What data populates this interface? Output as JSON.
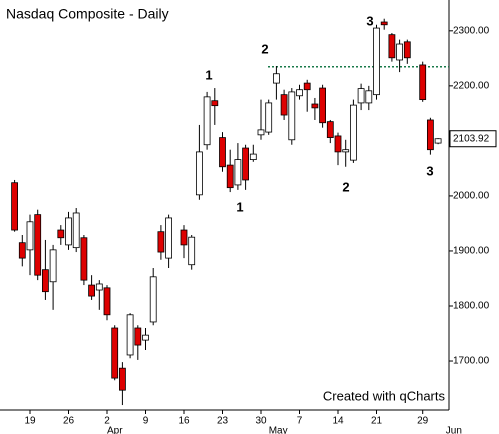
{
  "chart_data": {
    "type": "candlestick",
    "title": "Nasdaq Composite - Daily",
    "credit": "Created with qCharts",
    "categories": [
      null,
      null,
      "19",
      null,
      null,
      null,
      null,
      "26",
      null,
      null,
      null,
      null,
      "2",
      null,
      null,
      null,
      null,
      "9",
      null,
      null,
      null,
      null,
      "16",
      null,
      null,
      null,
      null,
      "23",
      null,
      null,
      null,
      null,
      "30",
      null,
      null,
      null,
      null,
      "7",
      null,
      null,
      null,
      null,
      "14",
      null,
      null,
      null,
      null,
      "21",
      null,
      null,
      null,
      null,
      null,
      "29",
      null,
      null,
      null,
      null
    ],
    "months": [
      null,
      null,
      null,
      null,
      null,
      null,
      null,
      null,
      null,
      null,
      null,
      null,
      "Apr",
      null,
      null,
      null,
      null,
      null,
      null,
      null,
      null,
      null,
      null,
      null,
      null,
      null,
      null,
      null,
      null,
      null,
      null,
      null,
      null,
      "May",
      null,
      null,
      null,
      null,
      null,
      null,
      null,
      null,
      null,
      null,
      null,
      null,
      null,
      null,
      null,
      null,
      null,
      null,
      null,
      null,
      null,
      null,
      "Jun",
      null
    ],
    "open": [
      2024,
      1915,
      1902,
      1966,
      1866,
      1844,
      1938,
      1911,
      1906,
      1924,
      1838,
      1829,
      1833,
      1760,
      1687,
      1711,
      1760,
      1738,
      1771,
      1935,
      1887,
      null,
      1938,
      1875,
      2002,
      2093,
      2173,
      2106,
      2056,
      2020,
      2087,
      2066,
      2111,
      2116,
      2205,
      2184,
      2102,
      2182,
      2205,
      2167,
      2196,
      2135,
      2109,
      2080,
      2065,
      2169,
      2169,
      2184,
      2316,
      2293,
      2247,
      2280,
      null,
      2238,
      2138,
      2096,
      null,
      null
    ],
    "high": [
      2029,
      1929,
      1966,
      1975,
      1920,
      1911,
      1947,
      1971,
      1978,
      1929,
      1856,
      1847,
      1838,
      1765,
      1698,
      1787,
      1765,
      1760,
      1869,
      1947,
      1966,
      null,
      1947,
      1929,
      2129,
      2189,
      2196,
      2116,
      2084,
      2096,
      2093,
      2093,
      2175,
      2175,
      2236,
      2193,
      2196,
      2202,
      2211,
      2178,
      2202,
      2138,
      2115,
      2102,
      2175,
      2204,
      2200,
      2311,
      2322,
      2296,
      2284,
      2284,
      null,
      2244,
      2142,
      2105,
      null,
      null
    ],
    "low": [
      1935,
      1872,
      1856,
      1847,
      1811,
      1793,
      1911,
      1902,
      1898,
      1838,
      1811,
      1793,
      1774,
      1665,
      1620,
      1705,
      1702,
      1720,
      1765,
      1884,
      1869,
      null,
      1887,
      1866,
      1993,
      2084,
      2129,
      2044,
      2007,
      2011,
      2011,
      2062,
      2102,
      2111,
      2175,
      2138,
      2093,
      2175,
      2153,
      2138,
      2124,
      2096,
      2056,
      2053,
      2060,
      2156,
      2156,
      2175,
      2302,
      2244,
      2225,
      2240,
      null,
      2171,
      2075,
      2094,
      null,
      null
    ],
    "close": [
      1938,
      1887,
      1953,
      1856,
      1826,
      1902,
      1924,
      1960,
      1969,
      1847,
      1818,
      1840,
      1784,
      1669,
      1647,
      1784,
      1729,
      1747,
      1853,
      1898,
      1960,
      null,
      1911,
      1925,
      2080,
      2180,
      2164,
      2053,
      2015,
      2066,
      2029,
      2076,
      2120,
      2169,
      2222,
      2147,
      2189,
      2193,
      2193,
      2160,
      2133,
      2106,
      2080,
      2084,
      2165,
      2195,
      2191,
      2305,
      2311,
      2251,
      2276,
      2251,
      null,
      2175,
      2084,
      2103.92,
      null,
      null
    ],
    "up_color": "#ffffff",
    "down_color": "#dd0000",
    "ylim": [
      1611,
      2356
    ],
    "yticks": [
      {
        "value": 1700,
        "label": "1700.00"
      },
      {
        "value": 1800,
        "label": "1800.00"
      },
      {
        "value": 1900,
        "label": "1900.00"
      },
      {
        "value": 2000,
        "label": "2000.00"
      },
      {
        "value": 2100,
        "label": "2100.00"
      },
      {
        "value": 2200,
        "label": "2200.00"
      },
      {
        "value": 2300,
        "label": "2300.00"
      }
    ],
    "last_price": 2103.92,
    "resistance_line": {
      "value": 2234.6,
      "color": "#1a7a4a"
    },
    "annotations": [
      "1",
      "1",
      "2",
      "2",
      "3",
      "3"
    ]
  }
}
